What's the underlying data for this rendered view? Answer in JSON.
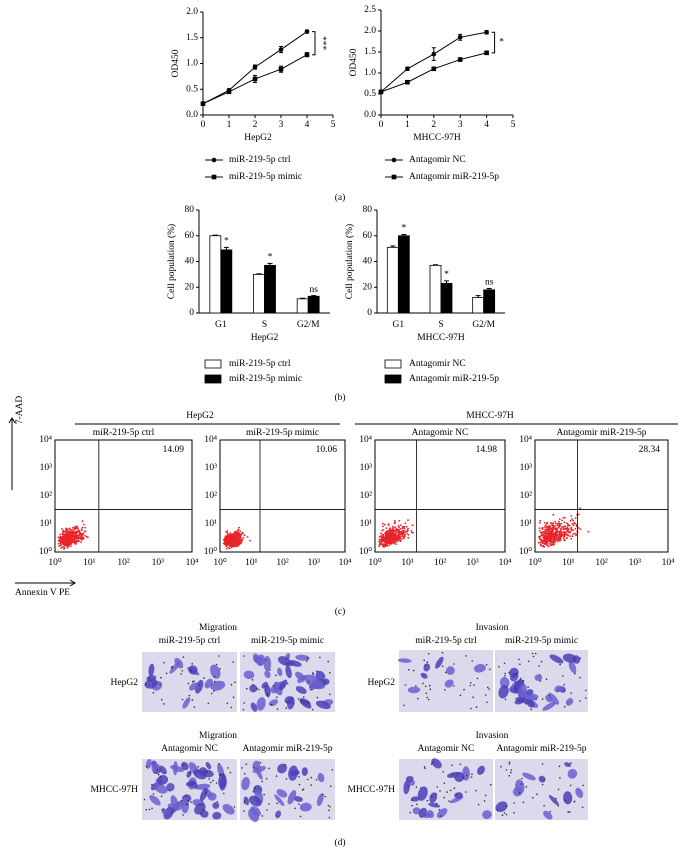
{
  "chart_data": [
    {
      "type": "line",
      "x_label": "HepG2",
      "y_label": "OD450",
      "x": [
        0,
        1,
        2,
        3,
        4
      ],
      "xlim": [
        0,
        5
      ],
      "xticks": [
        0,
        1,
        2,
        3,
        4,
        5
      ],
      "ylim": [
        0,
        2
      ],
      "yticks": [
        {
          "value": 0,
          "label": "0.0"
        },
        0.5,
        {
          "value": 1,
          "label": "1.0"
        },
        1.5,
        {
          "value": 2,
          "label": "2.0"
        }
      ],
      "series": [
        {
          "name": "miR-219-5p ctrl",
          "color": "#000000",
          "marker": "circle",
          "values": [
            0.22,
            0.48,
            0.93,
            1.27,
            1.62
          ],
          "errors": [
            0,
            0.03,
            0.04,
            0.06,
            0.03
          ]
        },
        {
          "name": "miR-219-5p mimic",
          "color": "#000000",
          "marker": "square",
          "values": [
            0.22,
            0.45,
            0.7,
            0.89,
            1.17
          ],
          "errors": [
            0,
            0.03,
            0.07,
            0.06,
            0.04
          ]
        }
      ],
      "annotation": "***"
    },
    {
      "type": "line",
      "x_label": "MHCC-97H",
      "y_label": "OD450",
      "x": [
        0,
        1,
        2,
        3,
        4
      ],
      "xlim": [
        0,
        5
      ],
      "xticks": [
        0,
        1,
        2,
        3,
        4,
        5
      ],
      "ylim": [
        0,
        2.5
      ],
      "yticks": [
        {
          "value": 0,
          "label": "0.0"
        },
        0.5,
        {
          "value": 1,
          "label": "1.0"
        },
        1.5,
        {
          "value": 2,
          "label": "2.0"
        },
        2.5
      ],
      "series": [
        {
          "name": "Antagomir NC",
          "color": "#000000",
          "marker": "circle",
          "values": [
            0.55,
            1.1,
            1.45,
            1.85,
            1.97
          ],
          "errors": [
            0,
            0.04,
            0.15,
            0.07,
            0.04
          ]
        },
        {
          "name": "Antagomir miR-219-5p",
          "color": "#000000",
          "marker": "square",
          "values": [
            0.55,
            0.78,
            1.1,
            1.32,
            1.48
          ],
          "errors": [
            0,
            0.03,
            0.03,
            0.03,
            0.04
          ]
        }
      ],
      "annotation": "*"
    },
    {
      "type": "bar",
      "x_label": "HepG2",
      "y_label": "Cell population (%)",
      "categories": [
        "G1",
        "S",
        "G2/M"
      ],
      "ylim": [
        0,
        80
      ],
      "yticks": [
        0,
        20,
        40,
        60,
        80
      ],
      "series": [
        {
          "name": "miR-219-5p ctrl",
          "color": "#ffffff",
          "values": [
            60,
            30,
            11
          ],
          "errors": [
            0.5,
            0.5,
            0.5
          ]
        },
        {
          "name": "miR-219-5p mimic",
          "color": "#000000",
          "values": [
            49,
            37,
            13
          ],
          "errors": [
            2,
            1.5,
            0.5
          ]
        }
      ],
      "significance": [
        "*",
        "*",
        "ns"
      ]
    },
    {
      "type": "bar",
      "x_label": "MHCC-97H",
      "y_label": "Cell population (%)",
      "categories": [
        "G1",
        "S",
        "G2/M"
      ],
      "ylim": [
        0,
        80
      ],
      "yticks": [
        0,
        20,
        40,
        60,
        80
      ],
      "series": [
        {
          "name": "Antagomir NC",
          "color": "#ffffff",
          "values": [
            51,
            37,
            12
          ],
          "errors": [
            1,
            0.5,
            1.5
          ]
        },
        {
          "name": "Antagomir miR-219-5p",
          "color": "#000000",
          "values": [
            60,
            23,
            18
          ],
          "errors": [
            1,
            2,
            1
          ]
        }
      ],
      "significance": [
        "*",
        "*",
        "ns"
      ]
    }
  ],
  "panel_labels": [
    "(a)",
    "(b)",
    "(c)",
    "(d)"
  ],
  "flow": {
    "y_label": "7-AAD",
    "x_label": "Annexin V PE",
    "ticks": [
      "10⁰",
      "10¹",
      "10²",
      "10³",
      "10⁴"
    ],
    "groups": [
      {
        "title": "HepG2",
        "plots": [
          {
            "title": "miR-219-5p ctrl",
            "value": 14.09
          },
          {
            "title": "miR-219-5p mimic",
            "value": 10.06
          }
        ]
      },
      {
        "title": "MHCC-97H",
        "plots": [
          {
            "title": "Antagomir NC",
            "value": 14.98
          },
          {
            "title": "Antagomir miR-219-5p",
            "value": 28.34
          }
        ]
      }
    ]
  },
  "assays": [
    {
      "title": "Migration",
      "row_label": "HepG2",
      "columns": [
        "miR-219-5p ctrl",
        "miR-219-5p mimic"
      ]
    },
    {
      "title": "Invasion",
      "row_label": "HepG2",
      "columns": [
        "miR-219-5p ctrl",
        "miR-219-5p mimic"
      ]
    },
    {
      "title": "Migration",
      "row_label": "MHCC-97H",
      "columns": [
        "Antagomir NC",
        "Antagomir miR-219-5p"
      ]
    },
    {
      "title": "Invasion",
      "row_label": "MHCC-97H",
      "columns": [
        "Antagomir NC",
        "Antagomir miR-219-5p"
      ]
    }
  ]
}
